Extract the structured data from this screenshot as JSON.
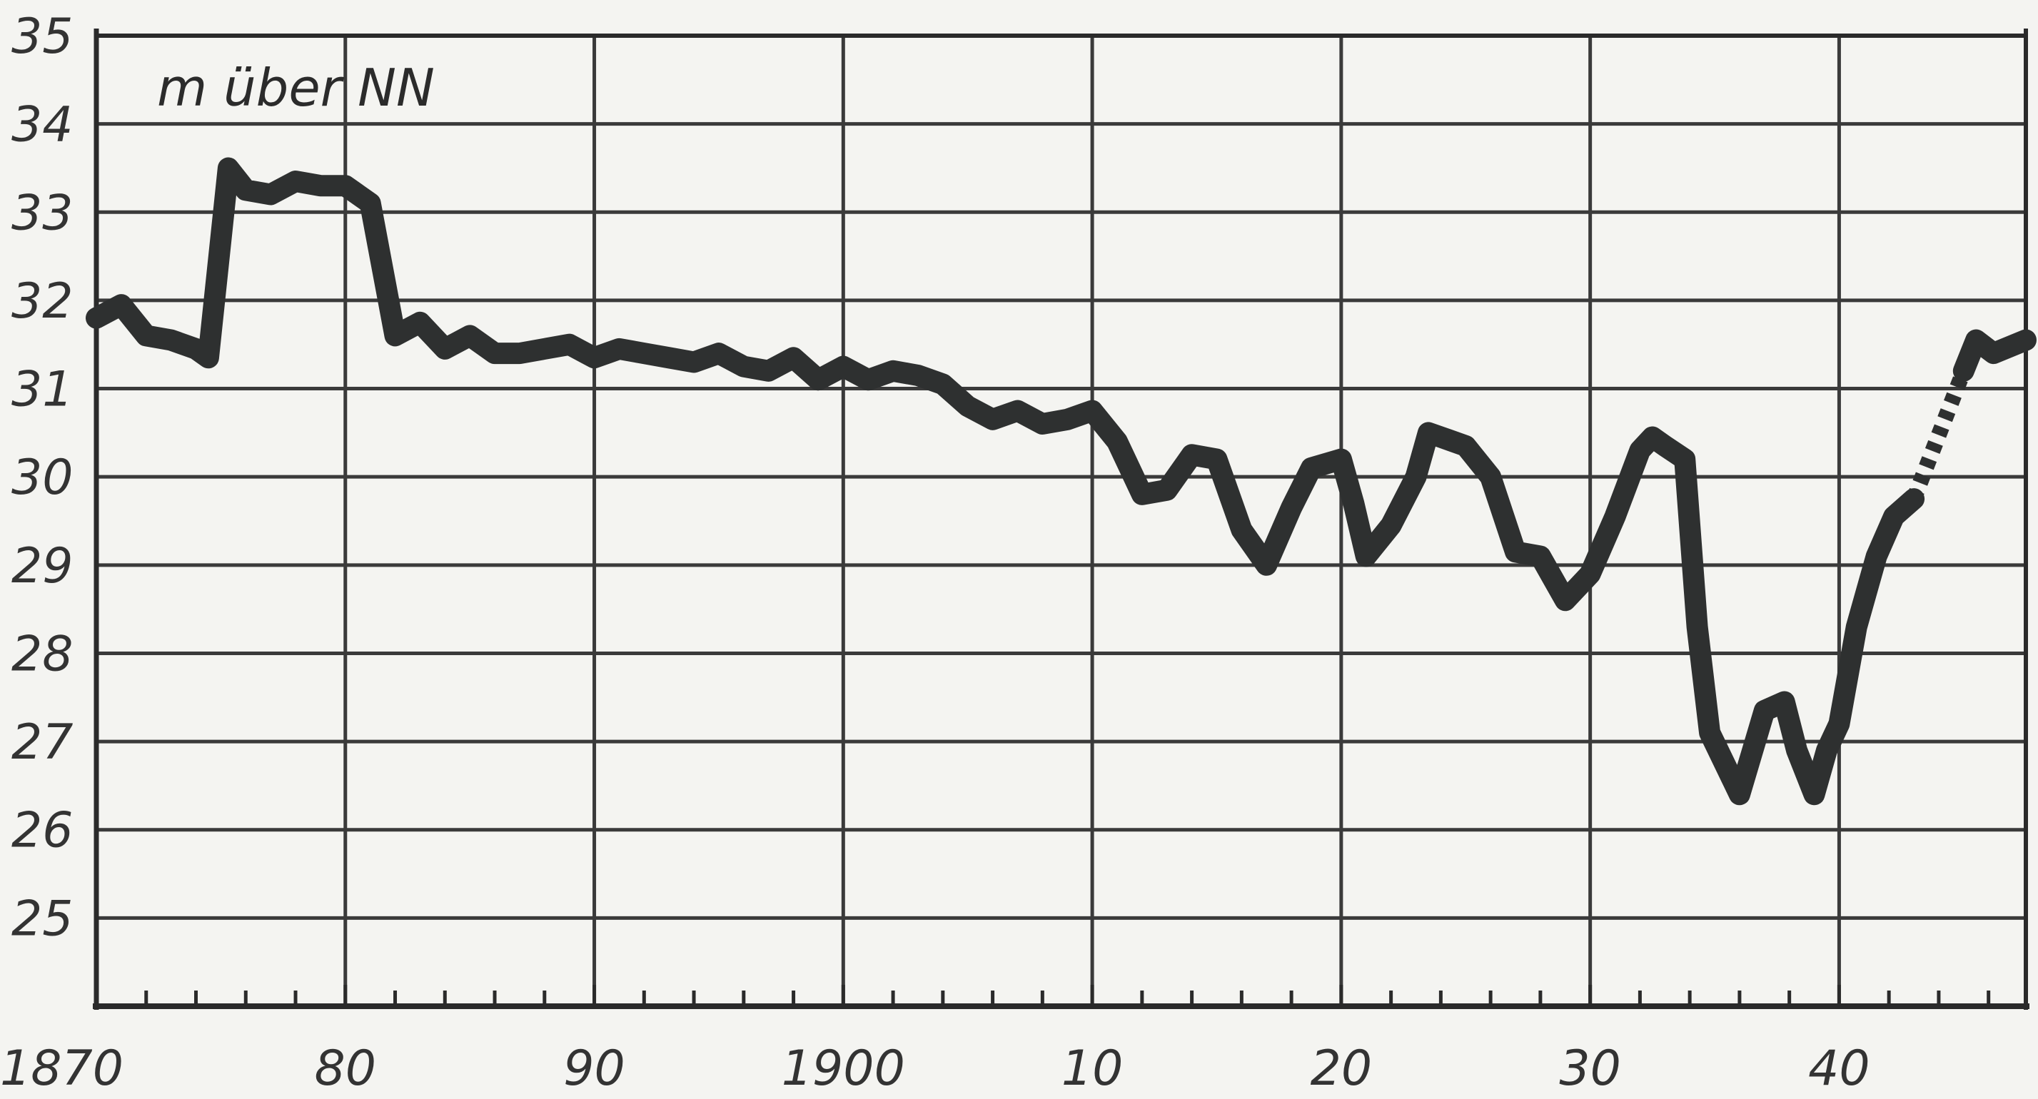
{
  "chart_data": {
    "type": "line",
    "unit_label": "m über NN",
    "xlim": [
      1870,
      1947.5
    ],
    "ylim": [
      24,
      35
    ],
    "x_ticks": [
      {
        "value": 1870,
        "label": "1870"
      },
      {
        "value": 1880,
        "label": "80"
      },
      {
        "value": 1890,
        "label": "90"
      },
      {
        "value": 1900,
        "label": "1900"
      },
      {
        "value": 1910,
        "label": "10"
      },
      {
        "value": 1920,
        "label": "20"
      },
      {
        "value": 1930,
        "label": "30"
      },
      {
        "value": 1940,
        "label": "40"
      }
    ],
    "y_ticks": [
      {
        "value": 25,
        "label": "25"
      },
      {
        "value": 26,
        "label": "26"
      },
      {
        "value": 27,
        "label": "27"
      },
      {
        "value": 28,
        "label": "28"
      },
      {
        "value": 29,
        "label": "29"
      },
      {
        "value": 30,
        "label": "30"
      },
      {
        "value": 31,
        "label": "31"
      },
      {
        "value": 32,
        "label": "32"
      },
      {
        "value": 33,
        "label": "33"
      },
      {
        "value": 34,
        "label": "34"
      },
      {
        "value": 35,
        "label": "35"
      }
    ],
    "grid": true,
    "line_color": "#2e3030",
    "series": [
      {
        "style": "solid",
        "points": [
          [
            1870.0,
            31.8
          ],
          [
            1871.0,
            31.95
          ],
          [
            1872.0,
            31.6
          ],
          [
            1873.0,
            31.55
          ],
          [
            1874.0,
            31.45
          ],
          [
            1874.5,
            31.35
          ],
          [
            1875.3,
            33.5
          ],
          [
            1876.0,
            33.25
          ],
          [
            1877.0,
            33.2
          ],
          [
            1878.0,
            33.35
          ],
          [
            1879.0,
            33.3
          ],
          [
            1880.0,
            33.3
          ],
          [
            1881.0,
            33.1
          ],
          [
            1882.0,
            31.6
          ],
          [
            1883.0,
            31.75
          ],
          [
            1884.0,
            31.45
          ],
          [
            1885.0,
            31.6
          ],
          [
            1886.0,
            31.4
          ],
          [
            1887.0,
            31.4
          ],
          [
            1888.0,
            31.45
          ],
          [
            1889.0,
            31.5
          ],
          [
            1890.0,
            31.35
          ],
          [
            1891.0,
            31.45
          ],
          [
            1892.0,
            31.4
          ],
          [
            1893.0,
            31.35
          ],
          [
            1894.0,
            31.3
          ],
          [
            1895.0,
            31.4
          ],
          [
            1896.0,
            31.25
          ],
          [
            1897.0,
            31.2
          ],
          [
            1898.0,
            31.35
          ],
          [
            1899.0,
            31.1
          ],
          [
            1900.0,
            31.25
          ],
          [
            1901.0,
            31.1
          ],
          [
            1902.0,
            31.2
          ],
          [
            1903.0,
            31.15
          ],
          [
            1904.0,
            31.05
          ],
          [
            1905.0,
            30.8
          ],
          [
            1906.0,
            30.65
          ],
          [
            1907.0,
            30.75
          ],
          [
            1908.0,
            30.6
          ],
          [
            1909.0,
            30.65
          ],
          [
            1910.0,
            30.75
          ],
          [
            1911.0,
            30.4
          ],
          [
            1912.0,
            29.8
          ],
          [
            1913.0,
            29.85
          ],
          [
            1914.0,
            30.25
          ],
          [
            1915.0,
            30.2
          ],
          [
            1916.0,
            29.4
          ],
          [
            1917.0,
            29.0
          ],
          [
            1918.0,
            29.65
          ],
          [
            1918.8,
            30.1
          ],
          [
            1920.0,
            30.2
          ],
          [
            1920.5,
            29.7
          ],
          [
            1921.0,
            29.1
          ],
          [
            1922.0,
            29.45
          ],
          [
            1923.0,
            30.0
          ],
          [
            1923.5,
            30.5
          ],
          [
            1924.0,
            30.45
          ],
          [
            1925.0,
            30.35
          ],
          [
            1926.0,
            30.0
          ],
          [
            1927.0,
            29.15
          ],
          [
            1928.0,
            29.1
          ],
          [
            1929.0,
            28.6
          ],
          [
            1930.0,
            28.9
          ],
          [
            1931.0,
            29.55
          ],
          [
            1932.0,
            30.3
          ],
          [
            1932.5,
            30.45
          ],
          [
            1933.0,
            30.35
          ],
          [
            1933.8,
            30.2
          ],
          [
            1934.3,
            28.3
          ],
          [
            1934.8,
            27.1
          ],
          [
            1936.0,
            26.4
          ],
          [
            1937.0,
            27.35
          ],
          [
            1937.8,
            27.45
          ],
          [
            1938.3,
            26.9
          ],
          [
            1939.0,
            26.4
          ],
          [
            1939.5,
            26.9
          ],
          [
            1940.0,
            27.2
          ],
          [
            1940.7,
            28.3
          ],
          [
            1941.5,
            29.1
          ],
          [
            1942.2,
            29.55
          ],
          [
            1943.0,
            29.75
          ]
        ]
      },
      {
        "style": "dotted",
        "points": [
          [
            1943.0,
            29.75
          ],
          [
            1945.0,
            31.2
          ]
        ]
      },
      {
        "style": "solid",
        "points": [
          [
            1945.0,
            31.2
          ],
          [
            1945.5,
            31.55
          ],
          [
            1946.2,
            31.4
          ],
          [
            1947.5,
            31.55
          ]
        ]
      }
    ]
  }
}
